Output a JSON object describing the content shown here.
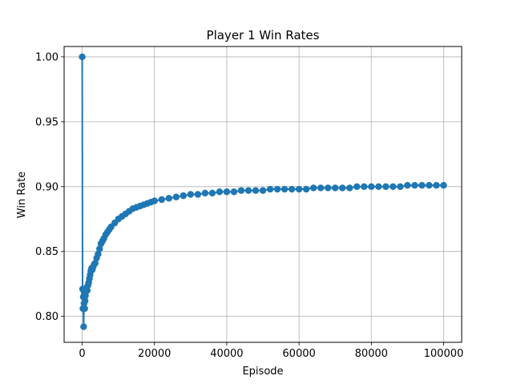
{
  "chart_data": {
    "type": "line",
    "title": "Player 1 Win Rates",
    "xlabel": "Episode",
    "ylabel": "Win Rate",
    "xlim": [
      -5000,
      105000
    ],
    "ylim": [
      0.78,
      1.008
    ],
    "xticks": [
      0,
      20000,
      40000,
      60000,
      80000,
      100000
    ],
    "xtick_labels": [
      "0",
      "20000",
      "40000",
      "60000",
      "80000",
      "100000"
    ],
    "yticks": [
      0.8,
      0.85,
      0.9,
      0.95,
      1.0
    ],
    "ytick_labels": [
      "0.80",
      "0.85",
      "0.90",
      "0.95",
      "1.00"
    ],
    "grid": true,
    "legend": "none",
    "series": [
      {
        "color": "#1f77b4",
        "marker": "circle",
        "x": [
          0,
          100,
          200,
          300,
          400,
          500,
          600,
          700,
          800,
          900,
          1000,
          1200,
          1400,
          1600,
          1800,
          2000,
          2200,
          2400,
          2600,
          2800,
          3000,
          3300,
          3600,
          4000,
          4400,
          4800,
          5200,
          5600,
          6000,
          6500,
          7000,
          7500,
          8000,
          9000,
          10000,
          11000,
          12000,
          13000,
          14000,
          15000,
          16000,
          17000,
          18000,
          19000,
          20000,
          22000,
          24000,
          26000,
          28000,
          30000,
          32000,
          34000,
          36000,
          38000,
          40000,
          42000,
          44000,
          46000,
          48000,
          50000,
          52000,
          54000,
          56000,
          58000,
          60000,
          62000,
          64000,
          66000,
          68000,
          70000,
          72000,
          74000,
          76000,
          78000,
          80000,
          82000,
          84000,
          86000,
          88000,
          90000,
          92000,
          94000,
          96000,
          98000,
          100000
        ],
        "y": [
          1.0,
          0.821,
          0.806,
          0.815,
          0.792,
          0.81,
          0.818,
          0.806,
          0.812,
          0.816,
          0.819,
          0.822,
          0.82,
          0.824,
          0.826,
          0.829,
          0.832,
          0.835,
          0.837,
          0.836,
          0.838,
          0.84,
          0.841,
          0.845,
          0.848,
          0.852,
          0.856,
          0.858,
          0.86,
          0.863,
          0.865,
          0.867,
          0.869,
          0.872,
          0.875,
          0.877,
          0.879,
          0.881,
          0.883,
          0.884,
          0.885,
          0.886,
          0.887,
          0.888,
          0.889,
          0.89,
          0.891,
          0.892,
          0.893,
          0.894,
          0.894,
          0.895,
          0.895,
          0.896,
          0.896,
          0.896,
          0.897,
          0.897,
          0.897,
          0.897,
          0.898,
          0.898,
          0.898,
          0.898,
          0.898,
          0.898,
          0.899,
          0.899,
          0.899,
          0.899,
          0.899,
          0.899,
          0.9,
          0.9,
          0.9,
          0.9,
          0.9,
          0.9,
          0.9,
          0.901,
          0.901,
          0.901,
          0.901,
          0.901,
          0.901
        ]
      }
    ]
  }
}
